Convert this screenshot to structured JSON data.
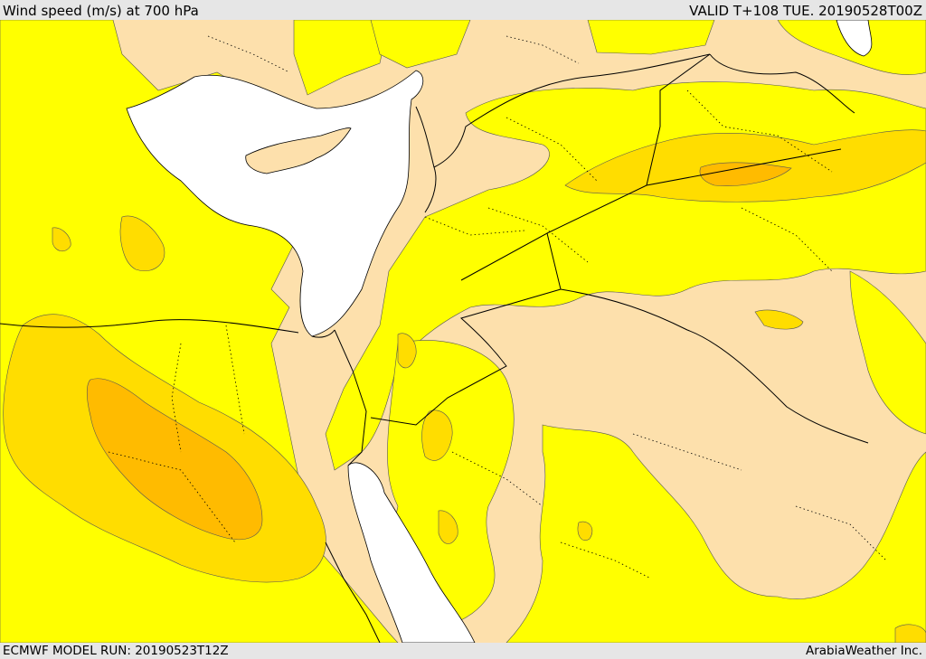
{
  "header": {
    "title": "Wind speed (m/s) at 700 hPa",
    "valid_time": "VALID T+108 TUE. 20190528T00Z"
  },
  "footer": {
    "model_run": "ECMWF MODEL RUN: 20190523T12Z",
    "credit": "ArabiaWeather Inc."
  },
  "colors": {
    "sea": "#ffffff",
    "light": "#fde0ac",
    "yellow": "#ffff00",
    "gold": "#ffdd00",
    "orange": "#ffbb00",
    "border": "#000000"
  }
}
